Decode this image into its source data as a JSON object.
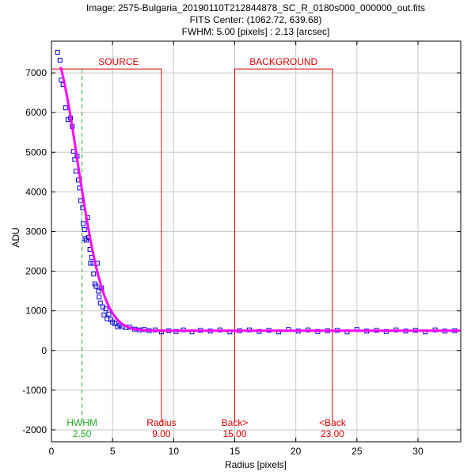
{
  "chart_data": {
    "type": "scatter",
    "title": "Image: 2575-Bulgaria_20190110T212844878_SC_R_0180s000_000000_out.fits",
    "subtitle_1": "FITS Center: (1062.72,  639.68)",
    "subtitle_2": "FWHM: 5.00 [pixels] : 2.13 [arcsec]",
    "xlabel": "Radius [pixels]",
    "ylabel": "ADU",
    "xlim": [
      0,
      33.5
    ],
    "ylim": [
      -2300,
      7800
    ],
    "x_ticks": [
      0,
      5,
      10,
      15,
      20,
      25,
      30
    ],
    "y_ticks": [
      -2000,
      -1000,
      0,
      1000,
      2000,
      3000,
      4000,
      5000,
      6000,
      7000
    ],
    "grid": true,
    "colors": {
      "points": "#0000dd",
      "fit": "#ff00ff",
      "aperture": "#dd0000",
      "fwhm": "#22aa22",
      "grid": "#c8c8c8"
    },
    "fit_model": {
      "peak": 7150,
      "background": 500,
      "fwhm": 5.0,
      "x_start": 0.75,
      "x_end": 33.5
    },
    "points": [
      [
        0.5,
        7520
      ],
      [
        0.7,
        7320
      ],
      [
        0.8,
        6820
      ],
      [
        0.95,
        6700
      ],
      [
        1.15,
        6120
      ],
      [
        1.35,
        5820
      ],
      [
        1.55,
        5860
      ],
      [
        1.7,
        5650
      ],
      [
        1.8,
        5020
      ],
      [
        1.9,
        4820
      ],
      [
        2.0,
        4520
      ],
      [
        2.1,
        4900
      ],
      [
        2.2,
        4300
      ],
      [
        2.3,
        4100
      ],
      [
        2.4,
        3780
      ],
      [
        2.55,
        3600
      ],
      [
        2.6,
        3200
      ],
      [
        2.7,
        3050
      ],
      [
        2.75,
        2820
      ],
      [
        2.85,
        2780
      ],
      [
        2.95,
        3350
      ],
      [
        3.05,
        2850
      ],
      [
        3.15,
        2550
      ],
      [
        3.2,
        2200
      ],
      [
        3.3,
        2350
      ],
      [
        3.4,
        2200
      ],
      [
        3.45,
        1930
      ],
      [
        3.55,
        1680
      ],
      [
        3.65,
        1620
      ],
      [
        3.75,
        2200
      ],
      [
        3.85,
        1500
      ],
      [
        3.9,
        1350
      ],
      [
        4.0,
        1200
      ],
      [
        4.1,
        1580
      ],
      [
        4.2,
        1100
      ],
      [
        4.3,
        900
      ],
      [
        4.45,
        1050
      ],
      [
        4.55,
        800
      ],
      [
        4.7,
        920
      ],
      [
        4.85,
        780
      ],
      [
        5.0,
        720
      ],
      [
        5.2,
        680
      ],
      [
        5.4,
        600
      ],
      [
        5.6,
        640
      ],
      [
        5.8,
        600
      ],
      [
        6.1,
        580
      ],
      [
        6.4,
        590
      ],
      [
        6.8,
        540
      ],
      [
        7.2,
        520
      ],
      [
        7.6,
        530
      ],
      [
        8.0,
        500
      ],
      [
        8.5,
        520
      ],
      [
        9.0,
        470
      ],
      [
        9.6,
        500
      ],
      [
        10.2,
        480
      ],
      [
        10.8,
        520
      ],
      [
        11.5,
        470
      ],
      [
        12.2,
        510
      ],
      [
        13.0,
        490
      ],
      [
        13.8,
        520
      ],
      [
        14.6,
        470
      ],
      [
        15.4,
        500
      ],
      [
        16.2,
        520
      ],
      [
        17.0,
        480
      ],
      [
        17.8,
        510
      ],
      [
        18.6,
        470
      ],
      [
        19.4,
        530
      ],
      [
        20.2,
        490
      ],
      [
        21.0,
        520
      ],
      [
        21.8,
        480
      ],
      [
        22.6,
        500
      ],
      [
        23.4,
        510
      ],
      [
        24.2,
        470
      ],
      [
        25.0,
        530
      ],
      [
        25.8,
        490
      ],
      [
        26.6,
        510
      ],
      [
        27.4,
        480
      ],
      [
        28.2,
        520
      ],
      [
        29.0,
        490
      ],
      [
        29.8,
        510
      ],
      [
        30.6,
        470
      ],
      [
        31.4,
        520
      ],
      [
        32.2,
        490
      ],
      [
        33.0,
        500
      ]
    ],
    "fwhm_marker": {
      "x": 2.5,
      "label": "HWHM",
      "value_label": "2.50"
    },
    "apertures": {
      "source": {
        "label": "SOURCE",
        "x_start": 0.0,
        "x_end": 9.0
      },
      "background": {
        "label": "BACKGROUND",
        "x_start": 15.0,
        "x_end": 23.0
      },
      "top_y": 7100,
      "bottom_y": -1800
    },
    "bottom_annotations": [
      {
        "x": 9.0,
        "label": "Radius",
        "value": "9.00"
      },
      {
        "x": 15.0,
        "label": "Back>",
        "value": "15.00"
      },
      {
        "x": 23.0,
        "label": "<Back",
        "value": "23.00"
      }
    ]
  }
}
